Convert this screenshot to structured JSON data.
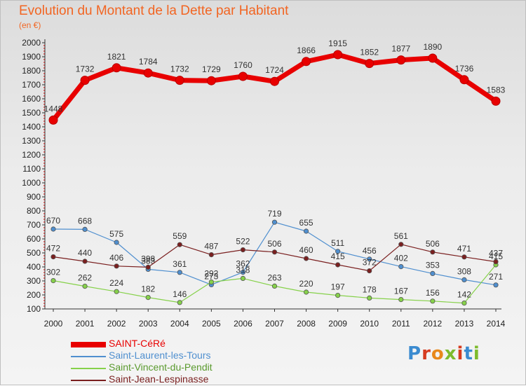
{
  "title": "Evolution du Montant de la Dette par Habitant",
  "subtitle": "(en €)",
  "logo_text": "Proxiti",
  "chart_data": {
    "type": "line",
    "title": "Evolution du Montant de la Dette par Habitant",
    "ylabel": "(en €)",
    "xlabel": "",
    "x": [
      "2000",
      "2001",
      "2002",
      "2003",
      "2004",
      "2005",
      "2006",
      "2007",
      "2008",
      "2009",
      "2010",
      "2011",
      "2012",
      "2013",
      "2014"
    ],
    "ylim": [
      100,
      2000
    ],
    "yticks": [
      100,
      200,
      300,
      400,
      500,
      600,
      700,
      800,
      900,
      1000,
      1100,
      1200,
      1300,
      1400,
      1500,
      1600,
      1700,
      1800,
      1900,
      2000
    ],
    "grid": "none",
    "legend_position": "bottom-left",
    "series": [
      {
        "name": "SAINT-CéRé",
        "color": "#e80000",
        "emphasis": "thick",
        "values": [
          1448,
          1732,
          1821,
          1784,
          1732,
          1729,
          1760,
          1724,
          1866,
          1915,
          1852,
          1877,
          1890,
          1736,
          1583
        ]
      },
      {
        "name": "Saint-Laurent-les-Tours",
        "color": "#4f8fcf",
        "emphasis": "thin",
        "values": [
          670,
          668,
          575,
          383,
          361,
          273,
          362,
          719,
          655,
          511,
          456,
          402,
          353,
          308,
          271
        ]
      },
      {
        "name": "Saint-Vincent-du-Pendit",
        "color": "#86d14a",
        "emphasis": "thin",
        "values": [
          302,
          262,
          224,
          182,
          146,
          292,
          318,
          263,
          220,
          197,
          178,
          167,
          156,
          142,
          415
        ]
      },
      {
        "name": "Saint-Jean-Lespinasse",
        "color": "#7a1f1f",
        "emphasis": "thin",
        "values": [
          472,
          440,
          406,
          398,
          559,
          487,
          522,
          506,
          460,
          415,
          372,
          561,
          506,
          471,
          437
        ]
      }
    ]
  }
}
